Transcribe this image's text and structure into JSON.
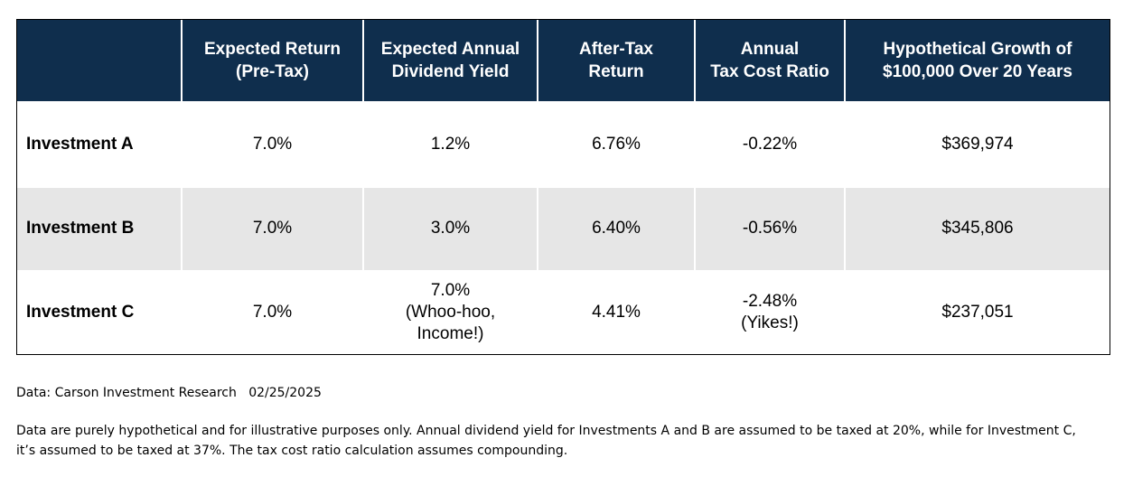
{
  "chart_data": {
    "type": "table",
    "columns": [
      [
        ""
      ],
      [
        "Expected Return",
        "(Pre-Tax)"
      ],
      [
        "Expected Annual",
        "Dividend Yield"
      ],
      [
        "After-Tax",
        "Return"
      ],
      [
        "Annual",
        "Tax Cost Ratio"
      ],
      [
        "Hypothetical Growth of",
        "$100,000 Over 20 Years"
      ]
    ],
    "rows": [
      {
        "label": "Investment A",
        "cells": [
          [
            "7.0%"
          ],
          [
            "1.2%"
          ],
          [
            "6.76%"
          ],
          [
            "-0.22%"
          ],
          [
            "$369,974"
          ]
        ]
      },
      {
        "label": "Investment B",
        "cells": [
          [
            "7.0%"
          ],
          [
            "3.0%"
          ],
          [
            "6.40%"
          ],
          [
            "-0.56%"
          ],
          [
            "$345,806"
          ]
        ]
      },
      {
        "label": "Investment C",
        "cells": [
          [
            "7.0%"
          ],
          [
            "7.0%",
            "(Whoo-hoo,",
            "Income!)"
          ],
          [
            "4.41%"
          ],
          [
            "-2.48%",
            "(Yikes!)"
          ],
          [
            "$237,051"
          ]
        ]
      }
    ]
  },
  "footer": {
    "source": "Data: Carson Investment Research   02/25/2025",
    "disclaimer_line1": "Data are purely hypothetical and for illustrative purposes only. Annual dividend yield for Investments A and B are assumed to be taxed at 20%, while for Investment C,",
    "disclaimer_line2": "it’s assumed to be taxed at 37%. The tax cost ratio calculation assumes compounding."
  },
  "colors": {
    "header_bg": "#0f2e4d",
    "header_text": "#ffffff",
    "stripe_bg": "#e6e6e6"
  }
}
